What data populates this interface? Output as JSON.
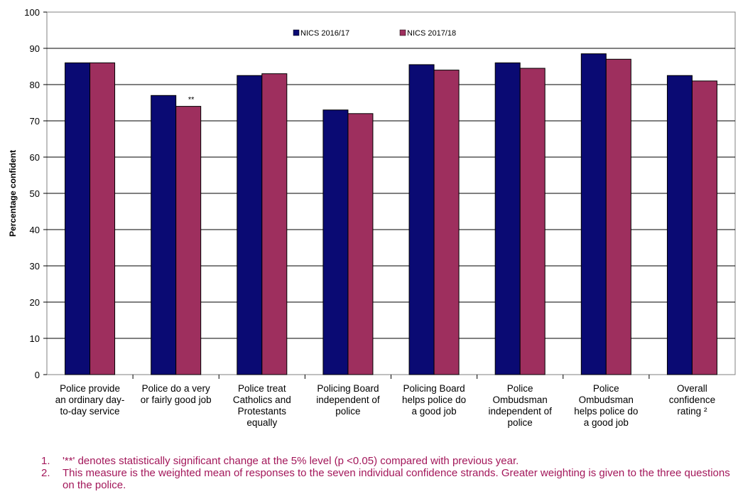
{
  "chart_data": {
    "type": "bar",
    "title": "",
    "xlabel": "",
    "ylabel": "Percentage confident",
    "ylim": [
      0,
      100
    ],
    "yticks": [
      0,
      10,
      20,
      30,
      40,
      50,
      60,
      70,
      80,
      90,
      100
    ],
    "grid": true,
    "legend_position": "top-center",
    "categories": [
      [
        "Police provide",
        "an ordinary day-",
        "to-day service"
      ],
      [
        "Police do a very",
        "or fairly good job"
      ],
      [
        "Police treat",
        "Catholics and",
        "Protestants",
        "equally"
      ],
      [
        "Policing Board",
        "independent of",
        "police"
      ],
      [
        "Policing Board",
        "helps police do",
        "a good job"
      ],
      [
        "Police",
        "Ombudsman",
        "independent of",
        "police"
      ],
      [
        "Police",
        "Ombudsman",
        "helps police do",
        "a good job"
      ],
      [
        "Overall",
        "confidence",
        "rating ²"
      ]
    ],
    "series": [
      {
        "name": "NICS 2016/17",
        "color": "#0a0a73",
        "values": [
          86,
          77,
          82.5,
          73,
          85.5,
          86,
          88.5,
          82.5
        ]
      },
      {
        "name": "NICS 2017/18",
        "color": "#9e2f5e",
        "values": [
          86,
          74,
          83,
          72,
          84,
          84.5,
          87,
          81
        ]
      }
    ],
    "annotations": [
      {
        "category_index": 1,
        "series_index": 1,
        "text": "**"
      }
    ]
  },
  "notes": [
    {
      "num": "1.",
      "text": "'**' denotes statistically significant change at the 5% level (p <0.05) compared with previous year."
    },
    {
      "num": "2.",
      "text": "This measure is the weighted mean of responses to the seven individual confidence strands.  Greater weighting is given to the three questions on the police."
    }
  ]
}
